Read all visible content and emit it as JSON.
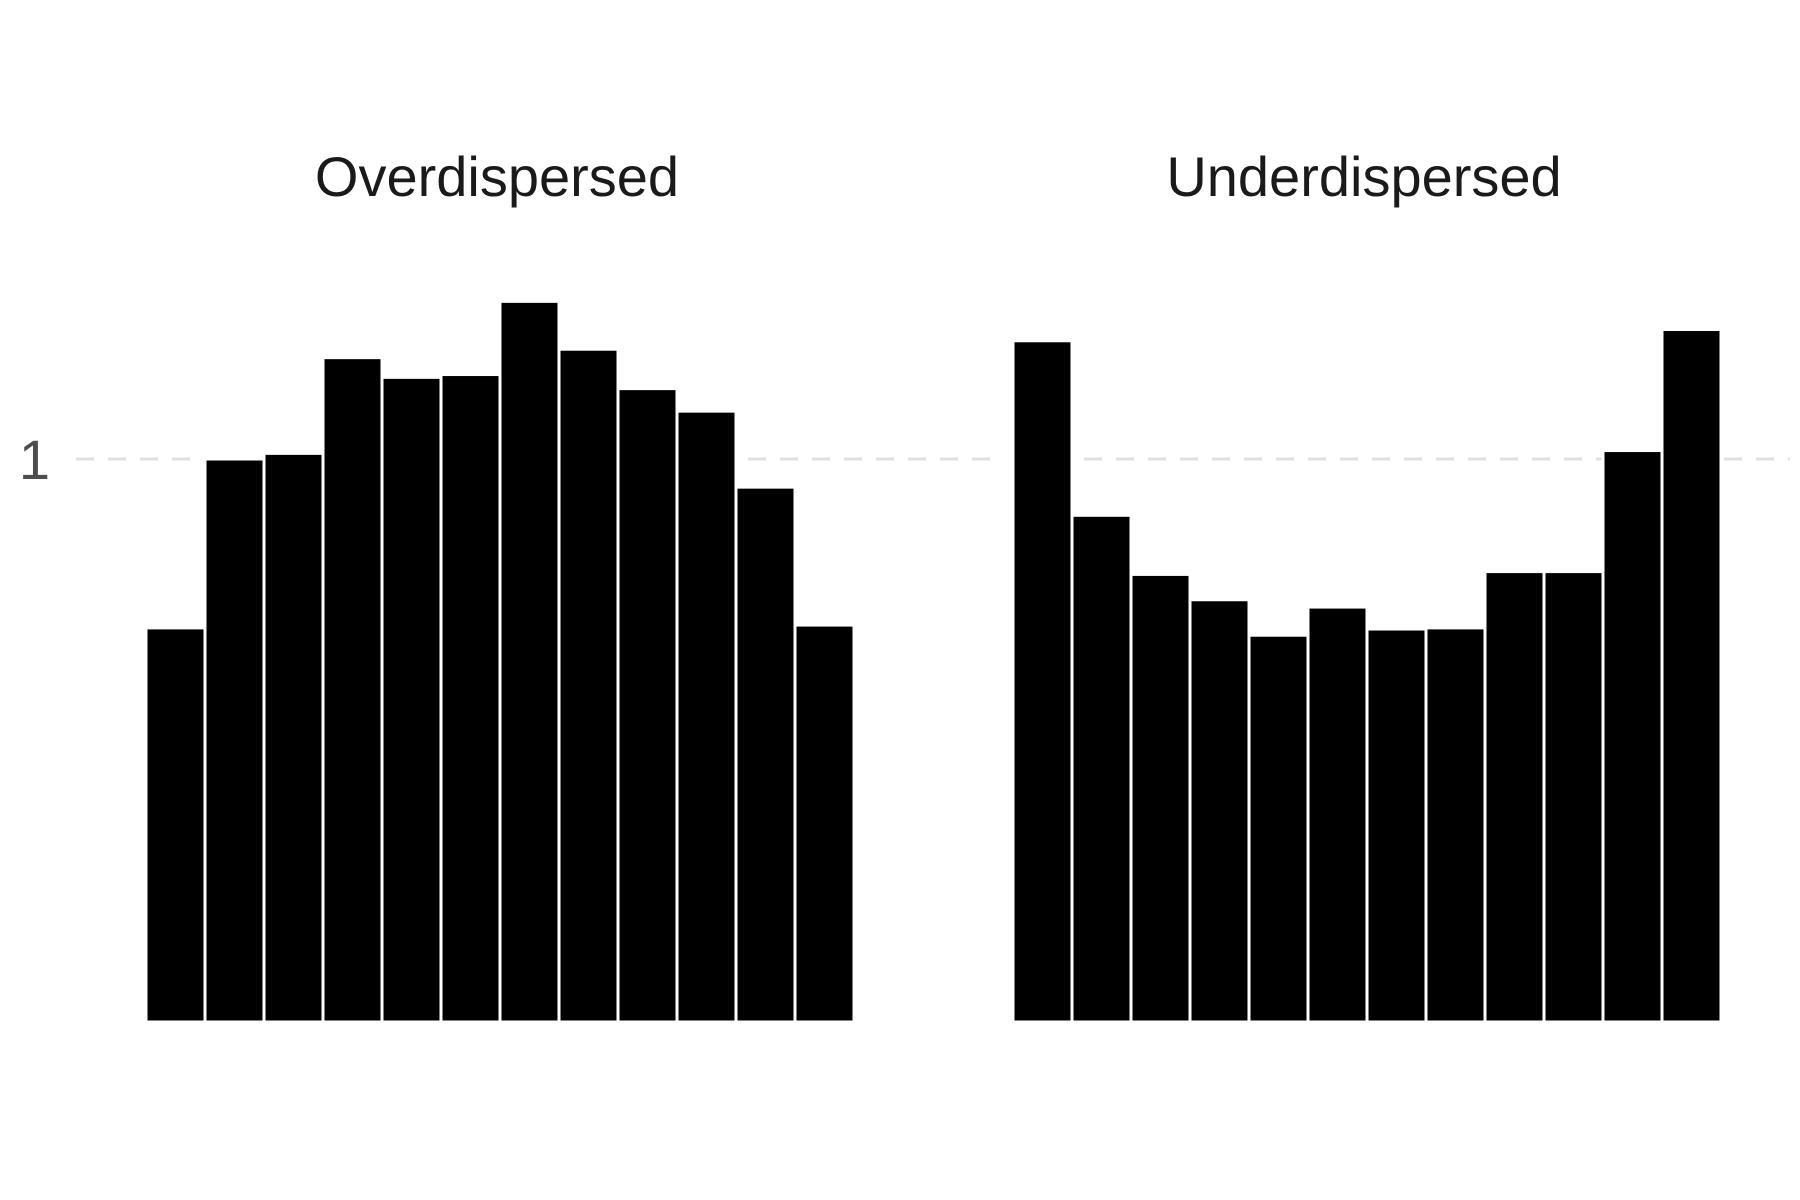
{
  "chart_data": [
    {
      "type": "bar",
      "title": "Overdispersed",
      "xlabel": "",
      "ylabel": "",
      "ylim": [
        0,
        1.3
      ],
      "y_ticks": [
        "1"
      ],
      "reference_line": 1,
      "grid": false,
      "colors": {
        "bar": "#000000",
        "reference_line": "#e0e0e0"
      },
      "values": [
        0.7,
        1.0,
        1.01,
        1.18,
        1.145,
        1.15,
        1.28,
        1.195,
        1.125,
        1.085,
        0.95,
        0.705
      ]
    },
    {
      "type": "bar",
      "title": "Underdispersed",
      "xlabel": "",
      "ylabel": "",
      "ylim": [
        0,
        1.3
      ],
      "reference_line": 1,
      "grid": false,
      "colors": {
        "bar": "#000000",
        "reference_line": "#e0e0e0"
      },
      "values": [
        1.21,
        0.9,
        0.795,
        0.75,
        0.687,
        0.737,
        0.698,
        0.7,
        0.8,
        0.8,
        1.015,
        1.23
      ]
    }
  ]
}
